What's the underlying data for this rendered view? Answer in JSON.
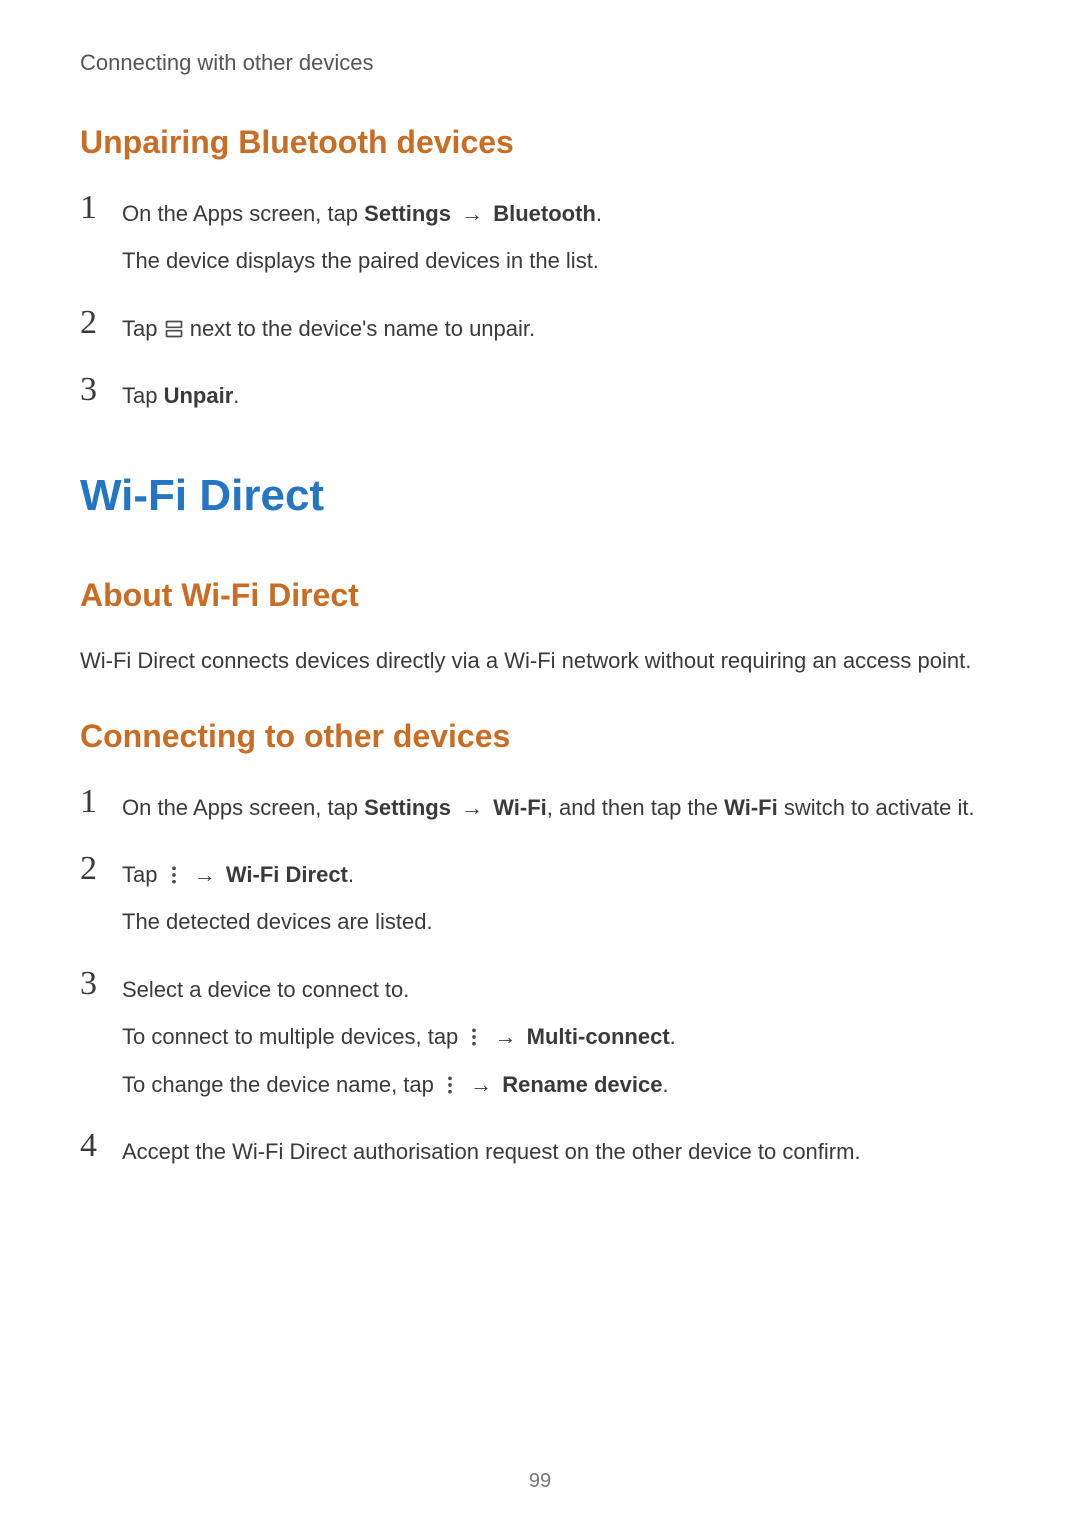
{
  "colors": {
    "h1": "#2476c4",
    "h2": "#c96c24",
    "body": "#3a3a3a",
    "headerLine": "#555555",
    "pageNum": "#777777",
    "bg": "#ffffff",
    "iconStroke": "#4a4a4a"
  },
  "typography": {
    "headerLineSize": 22,
    "h1Size": 44,
    "h2Size": 32,
    "bodySize": 22,
    "stepNumSize": 34,
    "pageNumSize": 20
  },
  "headerLine": "Connecting with other devices",
  "pageNumber": "99",
  "arrow": "→",
  "icons": {
    "settingsGear": "settings-gear-icon",
    "moreDots": "more-vertical-icon"
  },
  "sections": [
    {
      "key": "unpairing",
      "h2": "Unpairing Bluetooth devices",
      "steps": [
        {
          "num": "1",
          "lines": [
            {
              "parts": [
                {
                  "t": "On the Apps screen, tap "
                },
                {
                  "t": "Settings",
                  "b": true
                },
                {
                  "t": " "
                },
                {
                  "arrow": true
                },
                {
                  "t": " "
                },
                {
                  "t": "Bluetooth",
                  "b": true
                },
                {
                  "t": "."
                }
              ]
            },
            {
              "parts": [
                {
                  "t": "The device displays the paired devices in the list."
                }
              ]
            }
          ]
        },
        {
          "num": "2",
          "lines": [
            {
              "parts": [
                {
                  "t": "Tap "
                },
                {
                  "icon": "settingsGear"
                },
                {
                  "t": " next to the device's name to unpair."
                }
              ]
            }
          ]
        },
        {
          "num": "3",
          "lines": [
            {
              "parts": [
                {
                  "t": "Tap "
                },
                {
                  "t": "Unpair",
                  "b": true
                },
                {
                  "t": "."
                }
              ]
            }
          ]
        }
      ]
    },
    {
      "key": "wifi-direct",
      "h1": "Wi-Fi Direct",
      "subsections": [
        {
          "h2": "About Wi-Fi Direct",
          "body": "Wi-Fi Direct connects devices directly via a Wi-Fi network without requiring an access point."
        },
        {
          "h2": "Connecting to other devices",
          "steps": [
            {
              "num": "1",
              "lines": [
                {
                  "parts": [
                    {
                      "t": "On the Apps screen, tap "
                    },
                    {
                      "t": "Settings",
                      "b": true
                    },
                    {
                      "t": " "
                    },
                    {
                      "arrow": true
                    },
                    {
                      "t": " "
                    },
                    {
                      "t": "Wi-Fi",
                      "b": true
                    },
                    {
                      "t": ", and then tap the "
                    },
                    {
                      "t": "Wi-Fi",
                      "b": true
                    },
                    {
                      "t": " switch to activate it."
                    }
                  ]
                }
              ]
            },
            {
              "num": "2",
              "lines": [
                {
                  "parts": [
                    {
                      "t": "Tap "
                    },
                    {
                      "icon": "moreDots"
                    },
                    {
                      "t": " "
                    },
                    {
                      "arrow": true
                    },
                    {
                      "t": " "
                    },
                    {
                      "t": "Wi-Fi Direct",
                      "b": true
                    },
                    {
                      "t": "."
                    }
                  ]
                },
                {
                  "parts": [
                    {
                      "t": "The detected devices are listed."
                    }
                  ]
                }
              ]
            },
            {
              "num": "3",
              "lines": [
                {
                  "parts": [
                    {
                      "t": "Select a device to connect to."
                    }
                  ]
                },
                {
                  "parts": [
                    {
                      "t": "To connect to multiple devices, tap "
                    },
                    {
                      "icon": "moreDots"
                    },
                    {
                      "t": " "
                    },
                    {
                      "arrow": true
                    },
                    {
                      "t": " "
                    },
                    {
                      "t": "Multi-connect",
                      "b": true
                    },
                    {
                      "t": "."
                    }
                  ]
                },
                {
                  "parts": [
                    {
                      "t": "To change the device name, tap "
                    },
                    {
                      "icon": "moreDots"
                    },
                    {
                      "t": " "
                    },
                    {
                      "arrow": true
                    },
                    {
                      "t": " "
                    },
                    {
                      "t": "Rename device",
                      "b": true
                    },
                    {
                      "t": "."
                    }
                  ]
                }
              ]
            },
            {
              "num": "4",
              "lines": [
                {
                  "parts": [
                    {
                      "t": "Accept the Wi-Fi Direct authorisation request on the other device to confirm."
                    }
                  ]
                }
              ]
            }
          ]
        }
      ]
    }
  ]
}
